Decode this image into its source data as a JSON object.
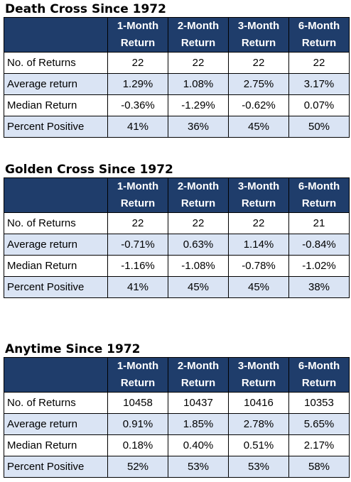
{
  "tables": [
    {
      "title": "Death Cross Since 1972",
      "headers": [
        [
          "1-Month",
          "Return"
        ],
        [
          "2-Month",
          "Return"
        ],
        [
          "3-Month",
          "Return"
        ],
        [
          "6-Month",
          "Return"
        ]
      ],
      "rows": [
        {
          "label": "No. of Returns",
          "values": [
            "22",
            "22",
            "22",
            "22"
          ]
        },
        {
          "label": "Average return",
          "values": [
            "1.29%",
            "1.08%",
            "2.75%",
            "3.17%"
          ]
        },
        {
          "label": "Median Return",
          "values": [
            "-0.36%",
            "-1.29%",
            "-0.62%",
            "0.07%"
          ]
        },
        {
          "label": "Percent Positive",
          "values": [
            "41%",
            "36%",
            "45%",
            "50%"
          ]
        }
      ]
    },
    {
      "title": "Golden Cross Since 1972",
      "headers": [
        [
          "1-Month",
          "Return"
        ],
        [
          "2-Month",
          "Return"
        ],
        [
          "3-Month",
          "Return"
        ],
        [
          "6-Month",
          "Return"
        ]
      ],
      "rows": [
        {
          "label": "No. of Returns",
          "values": [
            "22",
            "22",
            "22",
            "21"
          ]
        },
        {
          "label": "Average return",
          "values": [
            "-0.71%",
            "0.63%",
            "1.14%",
            "-0.84%"
          ]
        },
        {
          "label": "Median Return",
          "values": [
            "-1.16%",
            "-1.08%",
            "-0.78%",
            "-1.02%"
          ]
        },
        {
          "label": "Percent Positive",
          "values": [
            "41%",
            "45%",
            "45%",
            "38%"
          ]
        }
      ]
    },
    {
      "title": "Anytime Since 1972",
      "headers": [
        [
          "1-Month",
          "Return"
        ],
        [
          "2-Month",
          "Return"
        ],
        [
          "3-Month",
          "Return"
        ],
        [
          "6-Month",
          "Return"
        ]
      ],
      "rows": [
        {
          "label": "No. of Returns",
          "values": [
            "10458",
            "10437",
            "10416",
            "10353"
          ]
        },
        {
          "label": "Average return",
          "values": [
            "0.91%",
            "1.85%",
            "2.78%",
            "5.65%"
          ]
        },
        {
          "label": "Median Return",
          "values": [
            "0.18%",
            "0.40%",
            "0.51%",
            "2.17%"
          ]
        },
        {
          "label": "Percent Positive",
          "values": [
            "52%",
            "53%",
            "53%",
            "58%"
          ]
        }
      ]
    }
  ],
  "colors": {
    "header_bg": "#1f3d6b",
    "header_text": "#ffffff",
    "stripe": "#dae4f4"
  }
}
